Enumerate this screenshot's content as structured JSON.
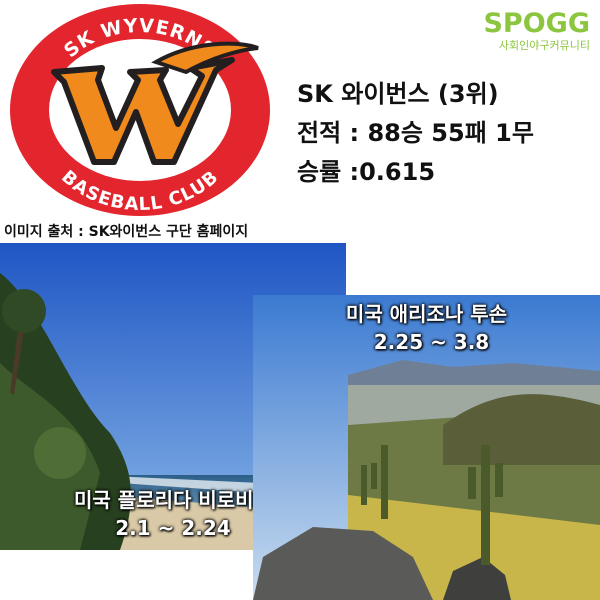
{
  "logo": {
    "top_text": "SK WYVERNS",
    "bottom_text": "BASEBALL CLUB",
    "letter": "W",
    "colors": {
      "ring": "#e3262e",
      "w_fill": "#f08a1c",
      "w_outline": "#231f20"
    }
  },
  "brand": {
    "name": "SPOGG",
    "subtitle": "사회인야구커뮤니티"
  },
  "team": {
    "name_line": "SK 와이번스 (3위)",
    "record_line": "전적 : 88승 55패 1무",
    "winrate_line": "승률 :0.615"
  },
  "source_note": "이미지 출처 : SK와이번스 구단 홈페이지",
  "camps": [
    {
      "place": "미국 플로리다 비로비치",
      "dates": "2.1 ~ 2.24"
    },
    {
      "place": "미국 애리조나 투손",
      "dates": "2.25 ~ 3.8"
    }
  ]
}
